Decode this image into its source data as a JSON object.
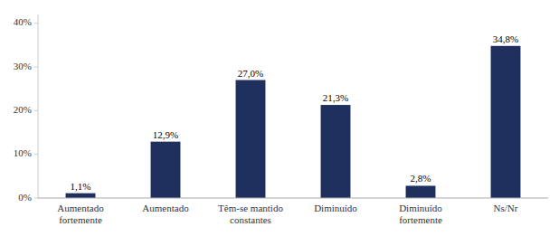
{
  "chart_data": {
    "type": "bar",
    "categories": [
      "Aumentado\nfortemente",
      "Aumentado",
      "Têm-se mantido\nconstantes",
      "Diminuído",
      "Diminuído\nfortemente",
      "Ns/Nr"
    ],
    "values": [
      1.1,
      12.9,
      27.0,
      21.3,
      2.8,
      34.8
    ],
    "value_labels": [
      "1,1%",
      "12,9%",
      "27,0%",
      "21,3%",
      "2,8%",
      "34,8%"
    ],
    "data_labels": true,
    "color": "#1f305e",
    "ylim": [
      0,
      42
    ],
    "yticks": [
      {
        "value": 0,
        "label": "0%"
      },
      {
        "value": 10,
        "label": "10%"
      },
      {
        "value": 20,
        "label": "20%"
      },
      {
        "value": 30,
        "label": "30%"
      },
      {
        "value": 40,
        "label": "40%"
      }
    ],
    "grid": false
  }
}
